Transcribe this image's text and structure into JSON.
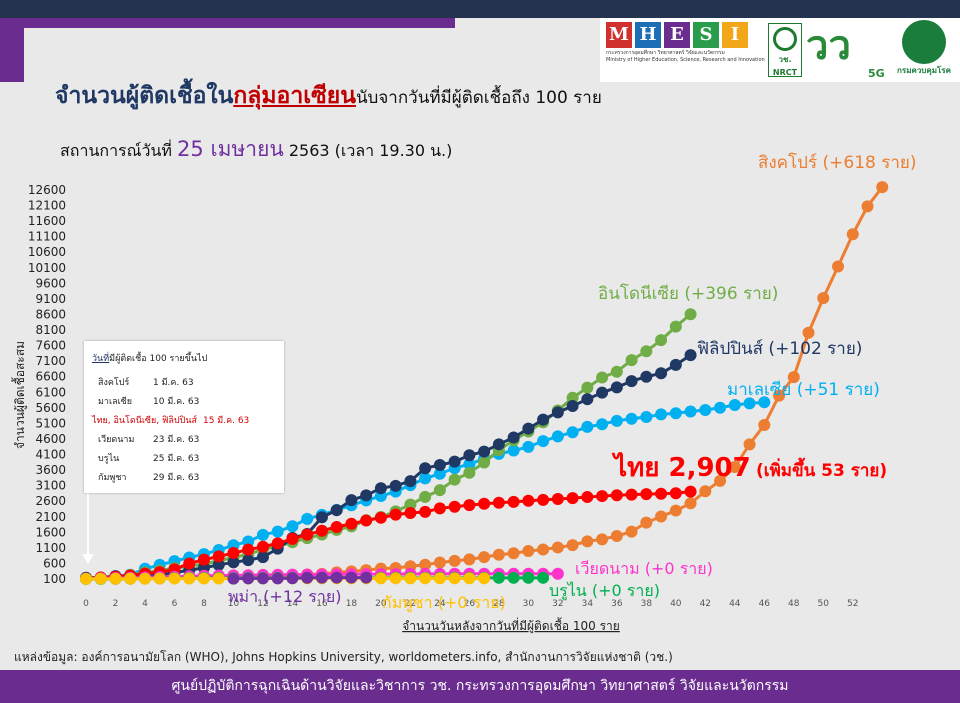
{
  "header": {
    "title_part1": "จำนวนผู้ติดเชื้อใน",
    "title_highlight": "กลุ่มอาเซียน",
    "title_part2": "นับจากวันที่มีผู้ติดเชื้อถึง 100 ราย",
    "subtitle_prefix": "สถานการณ์วันที่ ",
    "subtitle_date": "25 เมษายน",
    "subtitle_suffix": " 2563  (เวลา 19.30 น.)"
  },
  "logos": {
    "mhesi_letters": [
      "M",
      "H",
      "E",
      "S",
      "I"
    ],
    "mhesi_colors": [
      "#d0312d",
      "#1c6fb5",
      "#6a2c8f",
      "#2a9d4c",
      "#f2a71b"
    ],
    "mhesi_sub1": "กระทรวงการอุดมศึกษา วิทยาศาสตร์ วิจัยและนวัตกรรม",
    "mhesi_sub2": "Ministry of Higher Education, Science, Research and Innovation",
    "nrct_label": "วช.",
    "nrct_sub": "NRCT",
    "vch_text": "วว",
    "vch_5g": "5G",
    "moph_label": "กรมควบคุมโรค"
  },
  "legend_box": {
    "title_underlined": "วันที่",
    "title_rest": "มีผู้ติดเชื้อ 100 รายขึ้นไป",
    "rows": [
      {
        "name": "สิงคโปร์",
        "date": "1 มี.ค. 63",
        "highlight": false
      },
      {
        "name": "มาเลเซีย",
        "date": "10 มี.ค. 63",
        "highlight": false
      },
      {
        "name": "ไทย, อินโดนีเซีย, ฟิลิปปินส์",
        "date": "15 มี.ค. 63",
        "highlight": true
      },
      {
        "name": "เวียดนาม",
        "date": "23 มี.ค. 63",
        "highlight": false
      },
      {
        "name": "บรูไน",
        "date": "25 มี.ค. 63",
        "highlight": false
      },
      {
        "name": "กัมพูชา",
        "date": "29 มี.ค. 63",
        "highlight": false
      }
    ]
  },
  "chart_data": {
    "type": "line",
    "ylabel": "จำนวนผู้ติดเชื้อสะสม",
    "xlabel": "จำนวนวันหลังจากวันที่มีผู้ติดเชื้อ 100 ราย",
    "xlim": [
      0,
      55
    ],
    "ylim": [
      100,
      12600
    ],
    "x_ticks": [
      0,
      2,
      4,
      6,
      8,
      10,
      12,
      14,
      16,
      18,
      20,
      22,
      24,
      26,
      28,
      30,
      32,
      34,
      36,
      38,
      40,
      42,
      44,
      46,
      48,
      50,
      52
    ],
    "y_ticks": [
      100,
      600,
      1100,
      1600,
      2100,
      2600,
      3100,
      3600,
      4100,
      4600,
      5100,
      5600,
      6100,
      6600,
      7100,
      7600,
      8100,
      8600,
      9100,
      9600,
      10100,
      10600,
      11100,
      11600,
      12100,
      12600
    ],
    "grid": false,
    "series": [
      {
        "name": "สิงคโปร์",
        "annotation": "สิงคโปร์ (+618 ราย)",
        "color": "#ed7d31",
        "values": [
          106,
          108,
          110,
          112,
          117,
          130,
          138,
          150,
          160,
          166,
          178,
          187,
          200,
          212,
          226,
          243,
          266,
          313,
          345,
          385,
          432,
          455,
          509,
          558,
          631,
          683,
          732,
          802,
          879,
          926,
          1000,
          1049,
          1114,
          1189,
          1309,
          1375,
          1481,
          1623,
          1910,
          2108,
          2299,
          2532,
          2918,
          3252,
          3699,
          4427,
          5050,
          5992,
          6588,
          8014,
          9125,
          10141,
          11178,
          12075,
          12693
        ]
      },
      {
        "name": "อินโดนีเซีย",
        "annotation": "อินโดนีเซีย (+396 ราย)",
        "color": "#70ad47",
        "values": [
          117,
          134,
          172,
          227,
          309,
          369,
          450,
          514,
          579,
          686,
          790,
          893,
          1046,
          1155,
          1285,
          1414,
          1528,
          1677,
          1790,
          1986,
          2092,
          2273,
          2491,
          2738,
          2956,
          3293,
          3512,
          3842,
          4241,
          4557,
          4839,
          5136,
          5516,
          5923,
          6248,
          6575,
          6760,
          7135,
          7418,
          7775,
          8211,
          8607
        ]
      },
      {
        "name": "ฟิลิปปินส์",
        "annotation": "ฟิลิปปินส์ (+102 ราย)",
        "color": "#1f3864",
        "values": [
          140,
          142,
          187,
          202,
          217,
          230,
          307,
          380,
          462,
          552,
          636,
          707,
          803,
          1075,
          1418,
          1546,
          2084,
          2311,
          2633,
          2786,
          3018,
          3094,
          3246,
          3660,
          3764,
          3870,
          4076,
          4195,
          4428,
          4648,
          4932,
          5223,
          5453,
          5660,
          5878,
          6087,
          6259,
          6459,
          6599,
          6710,
          6981,
          7294
        ]
      },
      {
        "name": "มาเลเซีย",
        "annotation": "มาเลเซีย (+51 ราย)",
        "color": "#00b0f0",
        "values": [
          129,
          149,
          197,
          238,
          428,
          553,
          673,
          790,
          900,
          1030,
          1183,
          1306,
          1518,
          1624,
          1796,
          2031,
          2161,
          2320,
          2470,
          2626,
          2766,
          2908,
          3116,
          3333,
          3483,
          3662,
          3793,
          3963,
          4119,
          4228,
          4346,
          4530,
          4683,
          4817,
          4987,
          5072,
          5182,
          5251,
          5305,
          5389,
          5425,
          5482,
          5532,
          5603,
          5691,
          5742,
          5780
        ]
      },
      {
        "name": "ไทย",
        "annotation": "ไทย 2,907",
        "annotation2": "(เพิ่มขึ้น 53 ราย)",
        "color": "#ff0000",
        "values": [
          114,
          147,
          177,
          212,
          272,
          322,
          411,
          599,
          721,
          827,
          934,
          1045,
          1136,
          1245,
          1388,
          1524,
          1651,
          1771,
          1875,
          1978,
          2067,
          2169,
          2220,
          2258,
          2369,
          2423,
          2473,
          2518,
          2551,
          2579,
          2613,
          2643,
          2672,
          2700,
          2733,
          2765,
          2792,
          2811,
          2826,
          2839,
          2854,
          2907
        ]
      },
      {
        "name": "เวียดนาม",
        "annotation": "เวียดนาม (+0 ราย)",
        "color": "#ff33cc",
        "values": [
          113,
          123,
          134,
          141,
          153,
          163,
          174,
          188,
          203,
          212,
          218,
          222,
          233,
          237,
          240,
          241,
          245,
          249,
          251,
          255,
          257,
          258,
          262,
          265,
          266,
          267,
          268,
          268,
          268,
          268,
          270,
          270,
          270
        ]
      },
      {
        "name": "พม่า",
        "annotation": "พม่า (+12 ราย)",
        "color": "#7030a0",
        "values": [
          111,
          119,
          121,
          121,
          123,
          139,
          144,
          146,
          146,
          146
        ]
      },
      {
        "name": "กัมพูชา",
        "annotation": "กัมพูชา (+0 ราย)",
        "color": "#ffc000",
        "values": [
          103,
          107,
          109,
          109,
          110,
          114,
          114,
          115,
          115,
          115,
          117,
          119,
          120,
          122,
          122,
          122,
          122,
          122,
          122,
          122,
          122,
          122,
          122,
          122,
          122,
          122,
          122,
          122
        ]
      },
      {
        "name": "บรูไน",
        "annotation": "บรูไน (+0 ราย)",
        "color": "#00b050",
        "values": [
          104,
          105,
          106,
          109,
          114,
          115,
          126,
          127,
          131,
          133,
          134,
          135,
          135,
          135,
          135,
          136,
          136,
          137,
          138,
          138,
          138,
          138,
          138,
          138,
          138,
          138,
          138,
          138,
          138,
          138,
          138,
          138
        ]
      }
    ],
    "start_day": {
      "สิงคโปร์": 0,
      "อินโดนีเซีย": 0,
      "ฟิลิปปินส์": 0,
      "มาเลเซีย": 0,
      "ไทย": 0,
      "เวียดนาม": 0,
      "พม่า": 10,
      "กัมพูชา": 0,
      "บรูไน": 0
    }
  },
  "source": "แหล่งข้อมูล: องค์การอนามัยโลก (WHO), Johns Hopkins University, worldometers.info, สำนักงานการวิจัยแห่งชาติ (วช.)",
  "footer": "ศูนย์ปฏิบัติการฉุกเฉินด้านวิจัยและวิชาการ   วช.   กระทรวงการอุดมศึกษา วิทยาศาสตร์ วิจัยและนวัตกรรม"
}
